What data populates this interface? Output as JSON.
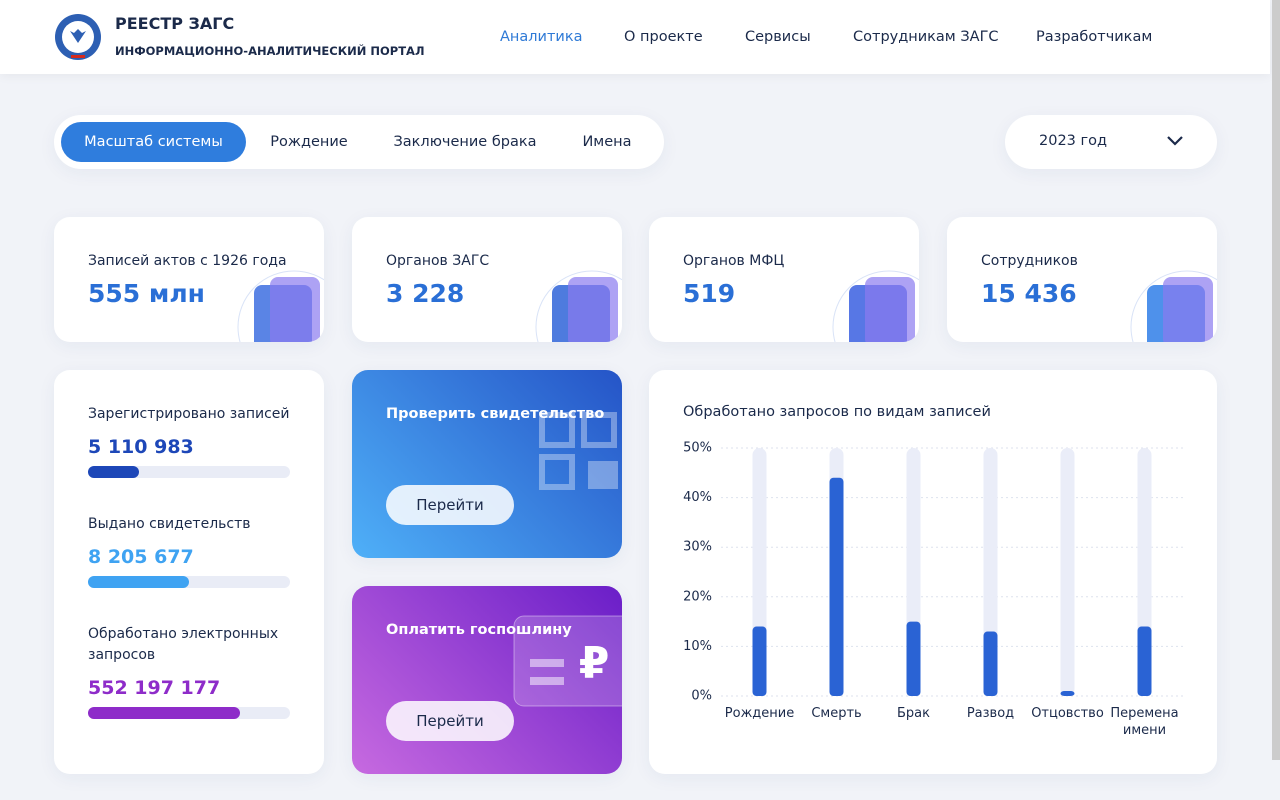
{
  "header": {
    "title": "РЕЕСТР ЗАГС",
    "subtitle": "ИНФОРМАЦИОННО-АНАЛИТИЧЕСКИЙ ПОРТАЛ",
    "nav": [
      "Аналитика",
      "О проекте",
      "Сервисы",
      "Сотрудникам ЗАГС",
      "Разработчикам"
    ]
  },
  "tabs": [
    "Масштаб системы",
    "Рождение",
    "Заключение брака",
    "Имена"
  ],
  "year": "2023 год",
  "stats": [
    {
      "label": "Записей актов с 1926 года",
      "value": "555 млн"
    },
    {
      "label": "Органов ЗАГС",
      "value": "3 228"
    },
    {
      "label": "Органов МФЦ",
      "value": "519"
    },
    {
      "label": "Сотрудников",
      "value": "15 436"
    }
  ],
  "progress": [
    {
      "label": "Зарегистрировано записей",
      "value": "5 110 983",
      "share": 25,
      "color": "#1d47b8"
    },
    {
      "label": "Выдано свидетельств",
      "value": "8 205 677",
      "share": 50,
      "color": "#3fa3f2"
    },
    {
      "label": "Обработано электронных запросов",
      "value": "552 197 177",
      "share": 75,
      "color": "#8e2cc9"
    }
  ],
  "actions": [
    {
      "title": "Проверить свидетельство",
      "button": "Перейти"
    },
    {
      "title": "Оплатить госпошлину",
      "button": "Перейти"
    }
  ],
  "chart_data": {
    "type": "bar",
    "title": "Обработано запросов по видам записей",
    "categories": [
      "Рождение",
      "Смерть",
      "Брак",
      "Развод",
      "Отцовство",
      "Перемена имени"
    ],
    "values": [
      14,
      44,
      15,
      13,
      1,
      14
    ],
    "color": "#2a63d4",
    "ylim": [
      0,
      50
    ],
    "yticks": [
      {
        "value": 0,
        "label": "0%"
      },
      {
        "value": 10,
        "label": "10%"
      },
      {
        "value": 20,
        "label": "20%"
      },
      {
        "value": 30,
        "label": "30%"
      },
      {
        "value": 40,
        "label": "40%"
      },
      {
        "value": 50,
        "label": "50%"
      }
    ],
    "grid": true
  }
}
